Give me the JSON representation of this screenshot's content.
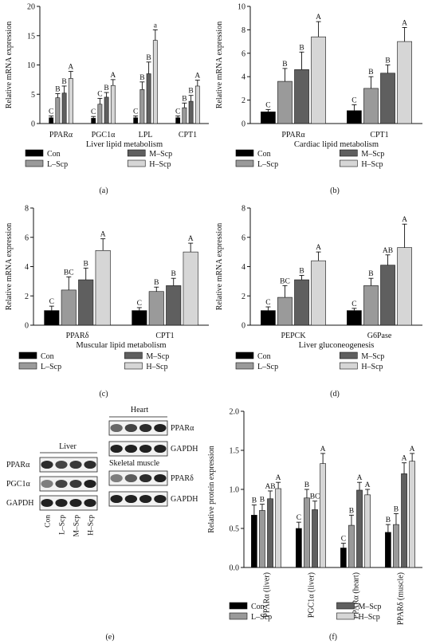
{
  "panel_labels": [
    "(a)",
    "(b)",
    "(c)",
    "(d)",
    "(e)",
    "(f)"
  ],
  "legend_entries": [
    "Con",
    "L–Scp",
    "M–Scp",
    "H–Scp"
  ],
  "series_colors": [
    "#000000",
    "#9a9a9a",
    "#5f5f5f",
    "#d6d6d6"
  ],
  "chart_data": [
    {
      "panel": "(a)",
      "type": "bar",
      "xlabel": "Liver lipid metabolism",
      "ylabel": "Relative mRNA expression",
      "categories": [
        "PPARα",
        "PGC1α",
        "LPL",
        "CPT1"
      ],
      "ylim": [
        0,
        20
      ],
      "yticks": [
        0,
        5,
        10,
        15,
        20
      ],
      "series": [
        {
          "name": "Con",
          "values": [
            1.0,
            0.9,
            1.0,
            1.0
          ],
          "errors": [
            0.3,
            0.3,
            0.3,
            0.3
          ],
          "letters": [
            "C",
            "C",
            "C",
            "C"
          ]
        },
        {
          "name": "L–Scp",
          "values": [
            4.4,
            3.3,
            5.8,
            2.7
          ],
          "errors": [
            0.7,
            1.0,
            1.3,
            0.8
          ],
          "letters": [
            "B",
            "C",
            "B",
            "B"
          ]
        },
        {
          "name": "M–Scp",
          "values": [
            5.2,
            4.5,
            8.5,
            3.8
          ],
          "errors": [
            1.2,
            0.8,
            2.0,
            1.0
          ],
          "letters": [
            "B",
            "B",
            "B",
            "B"
          ]
        },
        {
          "name": "H–Scp",
          "values": [
            7.7,
            6.5,
            14.2,
            6.4
          ],
          "errors": [
            1.2,
            1.0,
            1.8,
            1.0
          ],
          "letters": [
            "A",
            "A",
            "a",
            "A"
          ]
        }
      ]
    },
    {
      "panel": "(b)",
      "type": "bar",
      "xlabel": "Cardiac lipid metabolism",
      "ylabel": "Relative mRNA expression",
      "categories": [
        "PPARα",
        "CPT1"
      ],
      "ylim": [
        0,
        10
      ],
      "yticks": [
        0,
        2,
        4,
        6,
        8,
        10
      ],
      "series": [
        {
          "name": "Con",
          "values": [
            1.0,
            1.1
          ],
          "errors": [
            0.2,
            0.5
          ],
          "letters": [
            "C",
            "C"
          ]
        },
        {
          "name": "L–Scp",
          "values": [
            3.6,
            3.0
          ],
          "errors": [
            1.1,
            1.0
          ],
          "letters": [
            "B",
            "B"
          ]
        },
        {
          "name": "M–Scp",
          "values": [
            4.6,
            4.3
          ],
          "errors": [
            1.5,
            0.7
          ],
          "letters": [
            "B",
            "B"
          ]
        },
        {
          "name": "H–Scp",
          "values": [
            7.4,
            7.0
          ],
          "errors": [
            1.3,
            1.2
          ],
          "letters": [
            "A",
            "A"
          ]
        }
      ]
    },
    {
      "panel": "(c)",
      "type": "bar",
      "xlabel": "Muscular lipid metabolism",
      "ylabel": "Relative mRNA expression",
      "categories": [
        "PPARδ",
        "CPT1"
      ],
      "ylim": [
        0,
        8
      ],
      "yticks": [
        0,
        2,
        4,
        6,
        8
      ],
      "series": [
        {
          "name": "Con",
          "values": [
            1.0,
            1.0
          ],
          "errors": [
            0.3,
            0.2
          ],
          "letters": [
            "C",
            "C"
          ]
        },
        {
          "name": "L–Scp",
          "values": [
            2.4,
            2.3
          ],
          "errors": [
            0.9,
            0.3
          ],
          "letters": [
            "BC",
            "B"
          ]
        },
        {
          "name": "M–Scp",
          "values": [
            3.1,
            2.7
          ],
          "errors": [
            0.8,
            0.5
          ],
          "letters": [
            "B",
            "B"
          ]
        },
        {
          "name": "H–Scp",
          "values": [
            5.1,
            5.0
          ],
          "errors": [
            0.8,
            0.6
          ],
          "letters": [
            "A",
            "A"
          ]
        }
      ]
    },
    {
      "panel": "(d)",
      "type": "bar",
      "xlabel": "Liver gluconeogenesis",
      "ylabel": "Relative mRNA expression",
      "categories": [
        "PEPCK",
        "G6Pase"
      ],
      "ylim": [
        0,
        8
      ],
      "yticks": [
        0,
        2,
        4,
        6,
        8
      ],
      "series": [
        {
          "name": "Con",
          "values": [
            1.0,
            1.0
          ],
          "errors": [
            0.25,
            0.15
          ],
          "letters": [
            "C",
            "C"
          ]
        },
        {
          "name": "L–Scp",
          "values": [
            1.9,
            2.7
          ],
          "errors": [
            0.8,
            0.5
          ],
          "letters": [
            "BC",
            "B"
          ]
        },
        {
          "name": "M–Scp",
          "values": [
            3.1,
            4.1
          ],
          "errors": [
            0.3,
            0.7
          ],
          "letters": [
            "B",
            "AB"
          ]
        },
        {
          "name": "H–Scp",
          "values": [
            4.4,
            5.3
          ],
          "errors": [
            0.6,
            1.6
          ],
          "letters": [
            "A",
            "A"
          ]
        }
      ]
    },
    {
      "panel": "(f)",
      "type": "bar",
      "xlabel": "",
      "ylabel": "Relative protein expression",
      "categories": [
        "PPARα (liver)",
        "PGC1α (liver)",
        "PPARα (heart)",
        "PPARδ (muscle)"
      ],
      "ylim": [
        0,
        2.0
      ],
      "yticks": [
        0.0,
        0.5,
        1.0,
        1.5,
        2.0
      ],
      "series": [
        {
          "name": "Con",
          "values": [
            0.67,
            0.5,
            0.25,
            0.45
          ],
          "errors": [
            0.13,
            0.08,
            0.06,
            0.1
          ],
          "letters": [
            "B",
            "C",
            "C",
            "B"
          ]
        },
        {
          "name": "L–Scp",
          "values": [
            0.73,
            0.89,
            0.54,
            0.55
          ],
          "errors": [
            0.08,
            0.11,
            0.13,
            0.14
          ],
          "letters": [
            "B",
            "B",
            "B",
            "B"
          ]
        },
        {
          "name": "M–Scp",
          "values": [
            0.88,
            0.74,
            0.99,
            1.2
          ],
          "errors": [
            0.1,
            0.11,
            0.1,
            0.14
          ],
          "letters": [
            "AB",
            "BC",
            "A",
            "A"
          ]
        },
        {
          "name": "H–Scp",
          "values": [
            1.01,
            1.33,
            0.93,
            1.36
          ],
          "errors": [
            0.08,
            0.13,
            0.07,
            0.1
          ],
          "letters": [
            "A",
            "A",
            "A",
            "A"
          ]
        }
      ]
    }
  ],
  "western_blot": {
    "liver_title": "Liver",
    "liver_rows": [
      "PPARα",
      "PGC1α",
      "GAPDH"
    ],
    "lane_labels": [
      "Con",
      "L–Scp",
      "M–Scp",
      "H–Scp"
    ],
    "heart_title": "Heart",
    "heart_rows": [
      "PPARα",
      "GAPDH"
    ],
    "muscle_title": "Skeletal muscle",
    "muscle_rows": [
      "PPARδ",
      "GAPDH"
    ]
  }
}
